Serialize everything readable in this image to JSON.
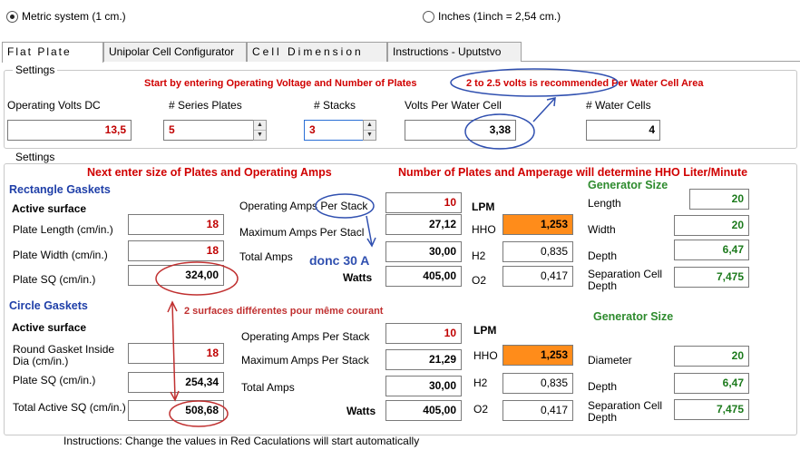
{
  "units": {
    "metric_label": "Metric system (1 cm.)",
    "inches_label": "Inches (1inch = 2,54 cm.)",
    "selected": "metric"
  },
  "tabs": [
    {
      "label": "Flat Plate",
      "active": true
    },
    {
      "label": "Unipolar Cell Configurator",
      "active": false
    },
    {
      "label": "Cell Dimension",
      "active": false
    },
    {
      "label": "Instructions - Uputstvo",
      "active": false
    }
  ],
  "settings_top": {
    "group_label": "Settings",
    "note1": "Start by entering Operating Voltage and Number of Plates",
    "note2": "2 to 2.5 volts is recommended Per Water Cell Area",
    "operating_volts": {
      "label": "Operating Volts DC",
      "value": "13,5"
    },
    "series_plates": {
      "label": "# Series Plates",
      "value": "5"
    },
    "stacks": {
      "label": "# Stacks",
      "value": "3"
    },
    "volts_per_cell": {
      "label": "Volts Per Water Cell",
      "value": "3,38"
    },
    "water_cells": {
      "label": "# Water Cells",
      "value": "4"
    }
  },
  "settings_bottom": {
    "group_label": "Settings",
    "note1": "Next enter size of Plates and Operating Amps",
    "note2": "Number of Plates and Amperage will determine HHO Liter/Minute",
    "annot_current": "donc 30 A",
    "annot_surfaces": "2 surfaces différentes pour même courant",
    "rect": {
      "title": "Rectangle Gaskets",
      "active_surface": "Active surface",
      "plate_length": {
        "label": "Plate Length (cm/in.)",
        "value": "18"
      },
      "plate_width": {
        "label": "Plate Width (cm/in.)",
        "value": "18"
      },
      "plate_sq": {
        "label": "Plate SQ (cm/in.)",
        "value": "324,00"
      },
      "operating_amps": {
        "label": "Operating Amps Per Stack",
        "value": "10"
      },
      "max_amps": {
        "label": "Maximum Amps Per Stacl",
        "value": "27,12"
      },
      "total_amps": {
        "label": "Total Amps",
        "value": "30,00"
      },
      "watts": {
        "label": "Watts",
        "value": "405,00"
      },
      "lpm": {
        "title": "LPM",
        "hho_label": "HHO",
        "hho": "1,253",
        "h2_label": "H2",
        "h2": "0,835",
        "o2_label": "O2",
        "o2": "0,417"
      },
      "generator": {
        "title": "Generator Size",
        "length": {
          "label": "Length",
          "value": "20"
        },
        "width": {
          "label": "Width",
          "value": "20"
        },
        "depth": {
          "label": "Depth",
          "value": "6,47"
        },
        "sep": {
          "label": "Separation Cell Depth",
          "value": "7,475"
        }
      }
    },
    "circle": {
      "title": "Circle Gaskets",
      "active_surface": "Active surface",
      "inside_dia": {
        "label": "Round Gasket Inside Dia (cm/in.)",
        "value": "18"
      },
      "plate_sq": {
        "label": "Plate SQ (cm/in.)",
        "value": "254,34"
      },
      "total_active": {
        "label": "Total Active SQ (cm/in.)",
        "value": "508,68"
      },
      "operating_amps": {
        "label": "Operating Amps Per Stack",
        "value": "10"
      },
      "max_amps": {
        "label": "Maximum Amps Per Stack",
        "value": "21,29"
      },
      "total_amps": {
        "label": "Total Amps",
        "value": "30,00"
      },
      "watts": {
        "label": "Watts",
        "value": "405,00"
      },
      "lpm": {
        "title": "LPM",
        "hho_label": "HHO",
        "hho": "1,253",
        "h2_label": "H2",
        "h2": "0,835",
        "o2_label": "O2",
        "o2": "0,417"
      },
      "generator": {
        "title": "Generator Size",
        "diameter": {
          "label": "Diameter",
          "value": "20"
        },
        "depth": {
          "label": "Depth",
          "value": "6,47"
        },
        "sep": {
          "label": "Separation Cell Depth",
          "value": "7,475"
        }
      }
    }
  },
  "footer": "Instructions: Change the values in Red    Caculations will start automatically",
  "colors": {
    "red": "#d00000",
    "blue": "#1f3fa8",
    "green": "#2e8b2e",
    "orange": "#ff8c1a",
    "annotation": "#c03030"
  }
}
